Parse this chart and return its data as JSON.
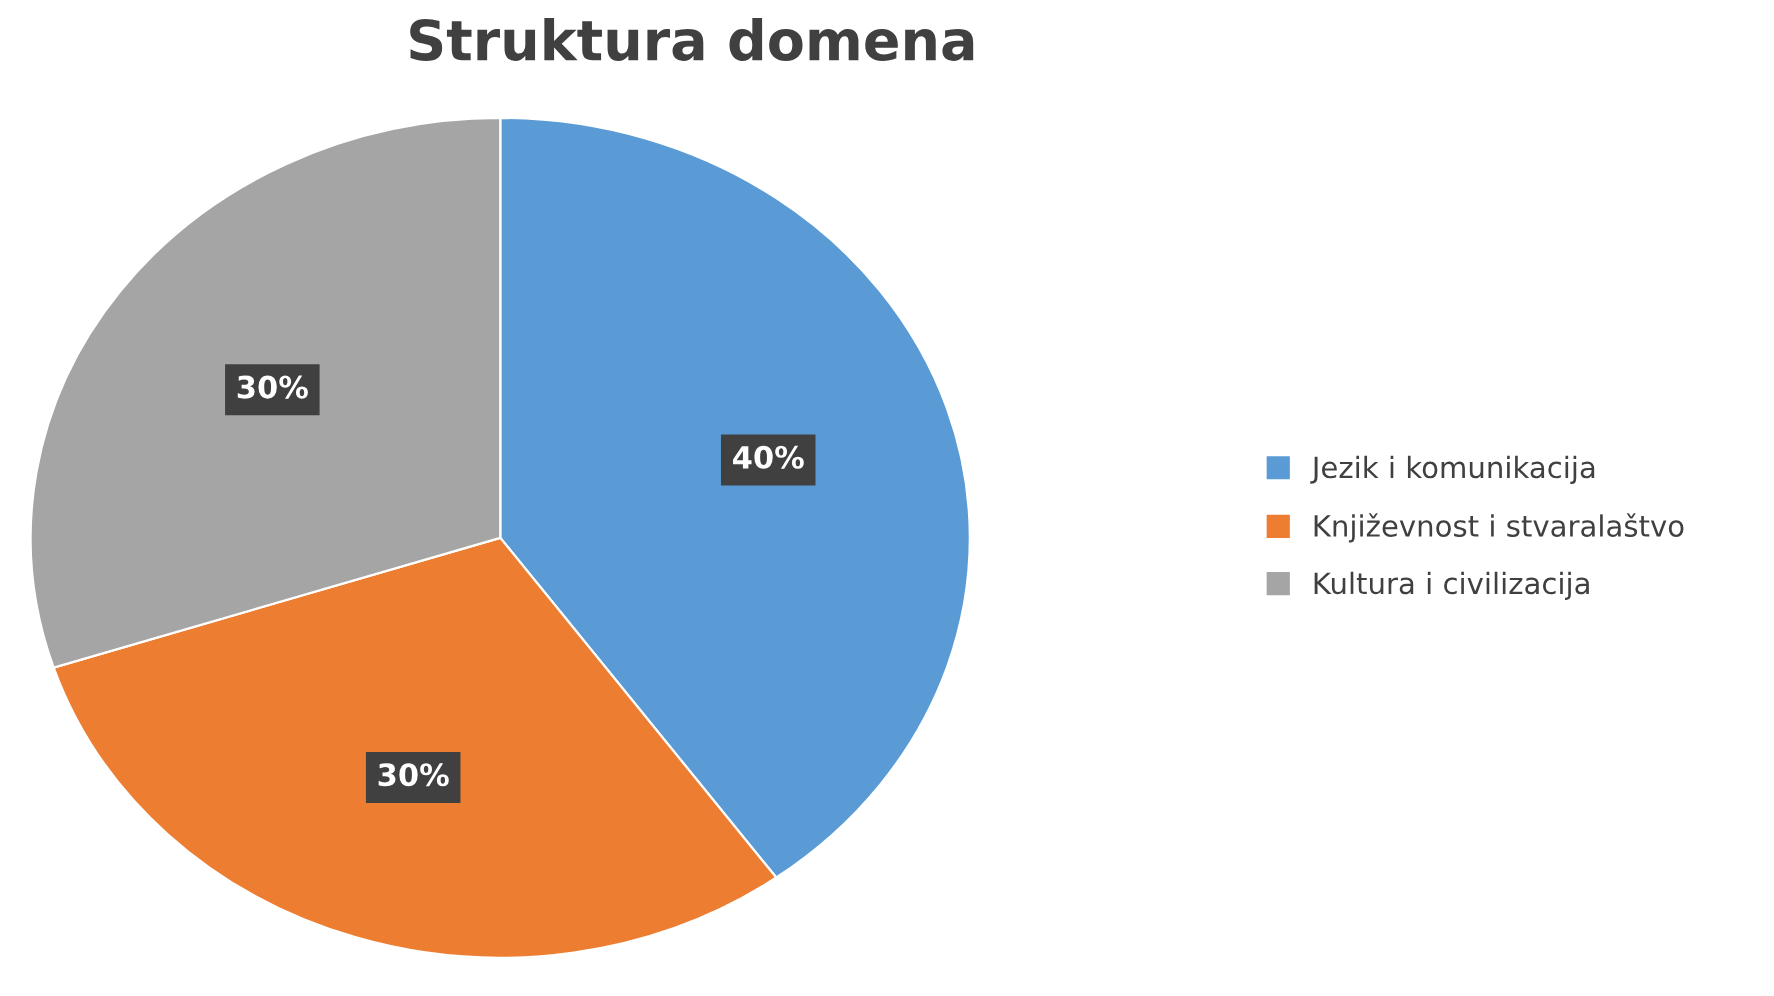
{
  "chart_data": {
    "type": "pie",
    "title": "Struktura domena",
    "categories": [
      "Jezik i komunikacija",
      "Književnost i stvaralaštvo",
      "Kultura i civilizacija"
    ],
    "values": [
      40,
      30,
      30
    ],
    "colors": [
      "#5b9bd5",
      "#ed7d31",
      "#a5a5a5"
    ],
    "value_labels": [
      "40%",
      "30%",
      "30%"
    ],
    "legend": "right"
  }
}
